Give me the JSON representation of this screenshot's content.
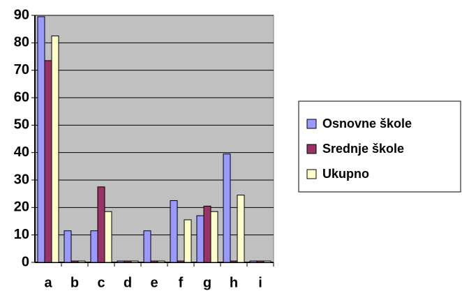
{
  "chart_data": {
    "type": "bar",
    "categories": [
      "a",
      "b",
      "c",
      "d",
      "e",
      "f",
      "g",
      "h",
      "i"
    ],
    "series": [
      {
        "name": "Osnovne škole",
        "color": "#9999ff",
        "values": [
          89,
          11,
          11,
          0,
          11,
          22,
          16.5,
          39,
          0
        ]
      },
      {
        "name": "Srednje škole",
        "color": "#993366",
        "values": [
          73,
          0,
          27,
          0,
          0,
          0,
          20,
          0,
          0
        ]
      },
      {
        "name": "Ukupno",
        "color": "#ffffcc",
        "values": [
          82,
          0,
          18,
          0,
          0,
          15,
          18,
          24,
          0
        ]
      }
    ],
    "ylim": [
      0,
      90
    ],
    "yticks": [
      0,
      10,
      20,
      30,
      40,
      50,
      60,
      70,
      80,
      90
    ],
    "grid": true,
    "legend": "right"
  }
}
